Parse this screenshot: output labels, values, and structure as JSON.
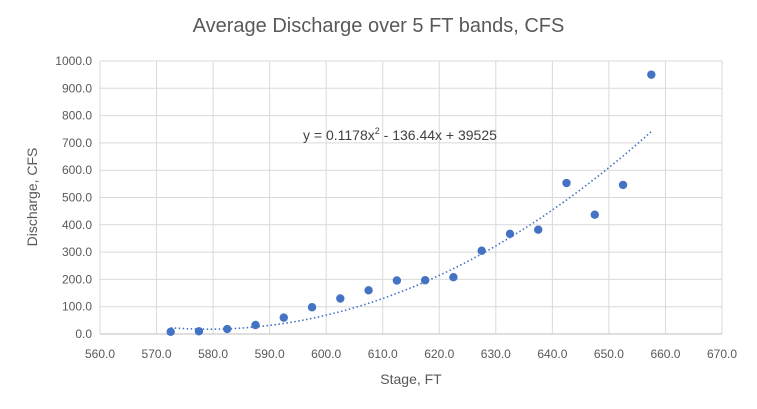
{
  "chart_data": {
    "type": "scatter",
    "title": "Average Discharge over 5 FT bands, CFS",
    "xlabel": "Stage, FT",
    "ylabel": "Discharge, CFS",
    "xlim": [
      560,
      670
    ],
    "ylim": [
      0,
      1000
    ],
    "x_ticks": [
      "560.0",
      "570.0",
      "580.0",
      "590.0",
      "600.0",
      "610.0",
      "620.0",
      "630.0",
      "640.0",
      "650.0",
      "660.0",
      "670.0"
    ],
    "y_ticks": [
      "0.0",
      "100.0",
      "200.0",
      "300.0",
      "400.0",
      "500.0",
      "600.0",
      "700.0",
      "800.0",
      "900.0",
      "1000.0"
    ],
    "grid": true,
    "marker_color": "#4472c4",
    "series": [
      {
        "x": [
          572.5,
          577.5,
          582.5,
          587.5,
          592.5,
          597.5,
          602.5,
          607.5,
          612.5,
          617.5,
          622.5,
          627.5,
          632.5,
          637.5,
          642.5,
          647.5,
          652.5,
          657.5
        ],
        "y": [
          8,
          10,
          18,
          33,
          60,
          98,
          130,
          160,
          196,
          197,
          208,
          305,
          367,
          382,
          553,
          437,
          546,
          950
        ]
      }
    ],
    "trendline": {
      "type": "polynomial",
      "order": 2,
      "coefficients": [
        0.1178,
        -136.44,
        39525
      ],
      "x_range": [
        572.5,
        657.5
      ],
      "style": "dotted"
    },
    "equation_base": "y = 0.1178x",
    "equation_power": "2",
    "equation_rest": " - 136.44x + 39525"
  }
}
